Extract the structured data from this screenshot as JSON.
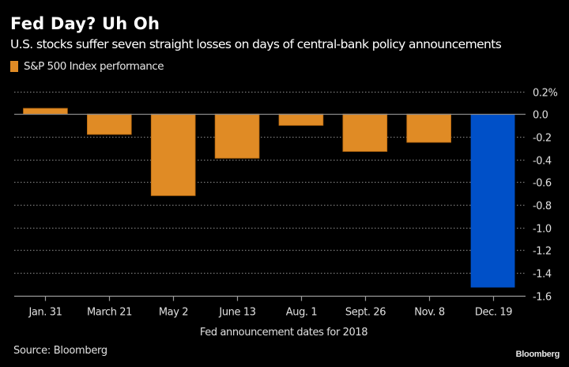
{
  "header": {
    "title": "Fed Day? Uh Oh",
    "subtitle": "U.S. stocks suffer seven straight losses on days of central-bank policy announcements"
  },
  "footer": {
    "source": "Source: Bloomberg",
    "brand": "Bloomberg"
  },
  "colors": {
    "background": "#000000",
    "primary_bar": "#e08b25",
    "highlight_bar": "#0050c8",
    "gridline": "#777777",
    "zero_line": "#888888"
  },
  "chart_data": {
    "type": "bar",
    "title": "Fed Day? Uh Oh",
    "subtitle": "U.S. stocks suffer seven straight losses on days of central-bank policy announcements",
    "xlabel": "Fed announcement dates for 2018",
    "ylabel": "",
    "y_unit": "%",
    "categories": [
      "Jan. 31",
      "March 21",
      "May 2",
      "June 13",
      "Aug. 1",
      "Sept. 26",
      "Nov. 8",
      "Dec. 19"
    ],
    "series": [
      {
        "name": "S&P 500 Index performance",
        "values": [
          0.05,
          -0.18,
          -0.72,
          -0.39,
          -0.1,
          -0.33,
          -0.25,
          -1.53
        ]
      }
    ],
    "highlight_index": 7,
    "ylim": [
      -1.6,
      0.2
    ],
    "yticks": [
      0.2,
      0.0,
      -0.2,
      -0.4,
      -0.6,
      -0.8,
      -1.0,
      -1.2,
      -1.4,
      -1.6
    ],
    "ytick_labels": [
      "0.2%",
      "0.0",
      "-0.2",
      "-0.4",
      "-0.6",
      "-0.8",
      "-1.0",
      "-1.2",
      "-1.4",
      "-1.6"
    ],
    "yaxis_side": "right",
    "grid": true,
    "grid_style": "dotted",
    "legend": {
      "placement": "top-left",
      "entries": [
        "S&P 500 Index performance"
      ]
    },
    "source": "Source: Bloomberg"
  }
}
